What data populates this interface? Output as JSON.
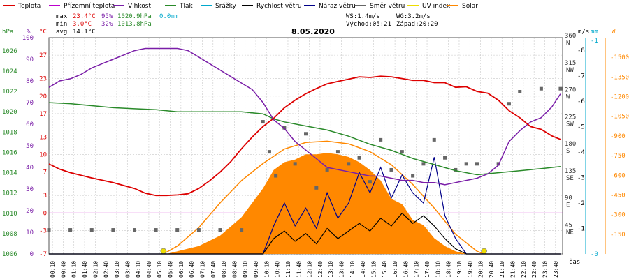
{
  "legend": [
    {
      "label": "Teplota",
      "color": "#dd0000"
    },
    {
      "label": "Přízemní teplota",
      "color": "#bb00cc"
    },
    {
      "label": "Vlhkost",
      "color": "#7a1ea8"
    },
    {
      "label": "Tlak",
      "color": "#2a8a2a"
    },
    {
      "label": "Srážky",
      "color": "#00a8cc"
    },
    {
      "label": "Rychlost větru",
      "color": "#000000"
    },
    {
      "label": "Náraz větru",
      "color": "#000088"
    },
    {
      "label": "Směr větru",
      "color": "#666666"
    },
    {
      "label": "UV index",
      "color": "#eedd00"
    },
    {
      "label": "Solar",
      "color": "#ff8800"
    }
  ],
  "stats": {
    "max_label": "max",
    "min_label": "min",
    "avg_label": "avg",
    "max_temp": "23.4°C",
    "max_hum": "95%",
    "max_press": "1020.9hPa",
    "max_rain": "0.0mm",
    "min_temp": "3.0°C",
    "min_hum": "32%",
    "min_press": "1013.8hPa",
    "avg_temp": "14.1°C",
    "ws": "WS:1.4m/s",
    "wg": "WG:3.2m/s",
    "sunrise": "Východ:05:21",
    "sunset": "Západ:20:20"
  },
  "date": "8.05.2020",
  "units": {
    "hpa": "hPa",
    "pct": "%",
    "degc": "°C",
    "ms": "m/s",
    "mm": "mm",
    "w": "W",
    "time": "čas"
  },
  "colors": {
    "temp": "#dd0000",
    "feel": "#bb00cc",
    "hum": "#7a1ea8",
    "press": "#2a8a2a",
    "rain": "#00a8cc",
    "wind": "#000000",
    "gust": "#000088",
    "dir": "#666666",
    "uv": "#eedd00",
    "solar": "#ff8800",
    "zero": "#cc00cc",
    "grid": "#c8c8c8"
  },
  "chart_data": {
    "type": "line",
    "x_unit": "hour of day",
    "x_ticks": [
      "00:10",
      "00:40",
      "01:10",
      "01:40",
      "02:10",
      "02:40",
      "03:10",
      "03:40",
      "04:10",
      "04:40",
      "05:10",
      "05:40",
      "06:10",
      "06:40",
      "07:10",
      "07:40",
      "08:10",
      "08:40",
      "09:10",
      "09:40",
      "10:10",
      "10:40",
      "11:10",
      "11:40",
      "12:10",
      "12:40",
      "13:10",
      "13:40",
      "14:10",
      "14:40",
      "15:10",
      "15:40",
      "16:10",
      "16:40",
      "17:10",
      "17:40",
      "18:10",
      "18:40",
      "19:10",
      "19:40",
      "20:10",
      "20:40",
      "21:10",
      "21:40",
      "22:10",
      "22:40",
      "23:10",
      "23:40"
    ],
    "axes": {
      "pressure_hpa": {
        "ticks": [
          1026,
          1024,
          1022,
          1020,
          1018,
          1016,
          1014,
          1012,
          1010,
          1008,
          1006
        ],
        "range": [
          1006,
          1027.3
        ]
      },
      "humidity_pct": {
        "ticks": [
          100,
          90,
          80,
          70,
          60,
          50,
          40,
          30,
          20,
          10,
          0
        ],
        "range": [
          0,
          100
        ]
      },
      "temperature_c": {
        "ticks": [
          27,
          23,
          20,
          17,
          13,
          10,
          7,
          3,
          0,
          -3,
          -7
        ],
        "range": [
          -7,
          30
        ]
      },
      "wind_dir": {
        "ticks": [
          "360 N",
          "315 NW",
          "270 W",
          "225 SW",
          "180 S",
          "135 SE",
          "90 E",
          "45 NE"
        ],
        "range": [
          0,
          360
        ]
      },
      "wind_ms": {
        "ticks": [
          8,
          7,
          6,
          5,
          4,
          3,
          2,
          1
        ],
        "range": [
          0,
          8.5
        ]
      },
      "rain_mm": {
        "ticks": [
          1,
          0
        ],
        "range": [
          0,
          1
        ]
      },
      "solar_w": {
        "ticks": [
          1500,
          1350,
          1200,
          1050,
          900,
          750,
          600,
          450,
          300,
          150
        ],
        "range": [
          0,
          1650
        ]
      }
    },
    "series": [
      {
        "name": "Teplota",
        "unit": "°C",
        "points": [
          [
            0,
            8.4
          ],
          [
            0.5,
            7.5
          ],
          [
            1,
            6.9
          ],
          [
            2,
            6.0
          ],
          [
            3,
            5.2
          ],
          [
            4,
            4.2
          ],
          [
            4.5,
            3.4
          ],
          [
            5,
            3.0
          ],
          [
            5.5,
            3.0
          ],
          [
            6,
            3.1
          ],
          [
            6.5,
            3.3
          ],
          [
            7,
            4.2
          ],
          [
            7.5,
            5.5
          ],
          [
            8,
            7.0
          ],
          [
            8.5,
            8.8
          ],
          [
            9,
            11.0
          ],
          [
            9.5,
            13.0
          ],
          [
            10,
            14.8
          ],
          [
            10.5,
            16.2
          ],
          [
            11,
            18.0
          ],
          [
            11.5,
            19.3
          ],
          [
            12,
            20.4
          ],
          [
            12.5,
            21.3
          ],
          [
            13,
            22.1
          ],
          [
            13.5,
            22.5
          ],
          [
            14,
            22.9
          ],
          [
            14.5,
            23.3
          ],
          [
            15,
            23.2
          ],
          [
            15.5,
            23.4
          ],
          [
            16,
            23.3
          ],
          [
            16.5,
            23.0
          ],
          [
            17,
            22.7
          ],
          [
            17.5,
            22.7
          ],
          [
            18,
            22.3
          ],
          [
            18.5,
            22.3
          ],
          [
            19,
            21.5
          ],
          [
            19.5,
            21.6
          ],
          [
            20,
            20.8
          ],
          [
            20.5,
            20.5
          ],
          [
            21,
            19.3
          ],
          [
            21.5,
            17.5
          ],
          [
            22,
            16.3
          ],
          [
            22.5,
            14.8
          ],
          [
            23,
            14.3
          ],
          [
            23.5,
            13.2
          ],
          [
            23.9,
            12.6
          ]
        ]
      },
      {
        "name": "Vlhkost",
        "unit": "%",
        "points": [
          [
            0,
            77
          ],
          [
            0.5,
            80
          ],
          [
            1,
            81
          ],
          [
            1.5,
            83
          ],
          [
            2,
            86
          ],
          [
            2.5,
            88
          ],
          [
            3,
            90
          ],
          [
            3.5,
            92
          ],
          [
            4,
            94
          ],
          [
            4.5,
            95
          ],
          [
            5,
            95
          ],
          [
            5.5,
            95
          ],
          [
            6,
            95
          ],
          [
            6.5,
            94
          ],
          [
            7,
            91
          ],
          [
            7.5,
            88
          ],
          [
            8,
            85
          ],
          [
            8.5,
            82
          ],
          [
            9,
            79
          ],
          [
            9.5,
            76
          ],
          [
            10,
            70
          ],
          [
            10.5,
            62
          ],
          [
            11,
            58
          ],
          [
            11.5,
            52
          ],
          [
            12,
            48
          ],
          [
            12.5,
            44
          ],
          [
            13,
            40
          ],
          [
            13.5,
            39
          ],
          [
            14,
            38
          ],
          [
            14.5,
            37
          ],
          [
            15,
            36
          ],
          [
            15.5,
            36
          ],
          [
            16,
            35
          ],
          [
            16.5,
            34
          ],
          [
            17,
            34
          ],
          [
            17.5,
            33
          ],
          [
            18,
            33
          ],
          [
            18.5,
            32
          ],
          [
            19,
            33
          ],
          [
            19.5,
            34
          ],
          [
            20,
            35
          ],
          [
            20.5,
            37
          ],
          [
            21,
            41
          ],
          [
            21.5,
            52
          ],
          [
            22,
            57
          ],
          [
            22.5,
            61
          ],
          [
            23,
            63
          ],
          [
            23.5,
            68
          ],
          [
            23.9,
            74
          ]
        ]
      },
      {
        "name": "Tlak",
        "unit": "hPa",
        "points": [
          [
            0,
            1020.9
          ],
          [
            1,
            1020.8
          ],
          [
            2,
            1020.6
          ],
          [
            3,
            1020.4
          ],
          [
            4,
            1020.3
          ],
          [
            5,
            1020.2
          ],
          [
            6,
            1020.0
          ],
          [
            7,
            1020.0
          ],
          [
            8,
            1020.0
          ],
          [
            9,
            1020.0
          ],
          [
            10,
            1019.8
          ],
          [
            10.5,
            1019.3
          ],
          [
            11,
            1019.0
          ],
          [
            12,
            1018.6
          ],
          [
            13,
            1018.2
          ],
          [
            14,
            1017.6
          ],
          [
            15,
            1016.8
          ],
          [
            16,
            1016.2
          ],
          [
            17,
            1015.4
          ],
          [
            18,
            1014.8
          ],
          [
            19,
            1014.2
          ],
          [
            20,
            1013.8
          ],
          [
            21,
            1014.0
          ],
          [
            22,
            1014.2
          ],
          [
            23,
            1014.4
          ],
          [
            23.9,
            1014.6
          ]
        ]
      },
      {
        "name": "Směr větru",
        "unit": "°",
        "points": [
          [
            0,
            40
          ],
          [
            1,
            40
          ],
          [
            2,
            40
          ],
          [
            3,
            40
          ],
          [
            4,
            40
          ],
          [
            5,
            40
          ],
          [
            6,
            40
          ],
          [
            7,
            40
          ],
          [
            8,
            40
          ],
          [
            9,
            40
          ],
          [
            10,
            220
          ],
          [
            10.3,
            170
          ],
          [
            10.6,
            130
          ],
          [
            11,
            210
          ],
          [
            11.5,
            150
          ],
          [
            12,
            200
          ],
          [
            12.5,
            110
          ],
          [
            13,
            140
          ],
          [
            13.5,
            170
          ],
          [
            14,
            150
          ],
          [
            14.5,
            160
          ],
          [
            15,
            120
          ],
          [
            15.5,
            190
          ],
          [
            16,
            140
          ],
          [
            16.5,
            170
          ],
          [
            17,
            130
          ],
          [
            17.5,
            150
          ],
          [
            18,
            190
          ],
          [
            18.5,
            160
          ],
          [
            19,
            140
          ],
          [
            19.5,
            150
          ],
          [
            20,
            150
          ],
          [
            21,
            150
          ],
          [
            21.5,
            250
          ],
          [
            22,
            270
          ],
          [
            23,
            275
          ],
          [
            23.9,
            275
          ]
        ]
      },
      {
        "name": "Rychlost větru",
        "unit": "m/s",
        "points": [
          [
            0,
            0
          ],
          [
            10,
            0
          ],
          [
            10.5,
            0.6
          ],
          [
            11,
            0.9
          ],
          [
            11.5,
            0.5
          ],
          [
            12,
            0.8
          ],
          [
            12.5,
            0.4
          ],
          [
            13,
            1.0
          ],
          [
            13.5,
            0.6
          ],
          [
            14,
            0.9
          ],
          [
            14.5,
            1.2
          ],
          [
            15,
            0.9
          ],
          [
            15.5,
            1.4
          ],
          [
            16,
            1.1
          ],
          [
            16.5,
            1.6
          ],
          [
            17,
            1.2
          ],
          [
            17.5,
            1.5
          ],
          [
            18,
            1.1
          ],
          [
            18.5,
            0.6
          ],
          [
            19,
            0.2
          ],
          [
            19.5,
            0
          ],
          [
            23.9,
            0
          ]
        ]
      },
      {
        "name": "Náraz větru",
        "unit": "m/s",
        "points": [
          [
            0,
            0
          ],
          [
            10,
            0
          ],
          [
            10.5,
            1.1
          ],
          [
            11,
            2.0
          ],
          [
            11.5,
            1.1
          ],
          [
            12,
            1.8
          ],
          [
            12.5,
            1.0
          ],
          [
            13,
            2.4
          ],
          [
            13.5,
            1.4
          ],
          [
            14,
            2.0
          ],
          [
            14.5,
            3.2
          ],
          [
            15,
            2.4
          ],
          [
            15.5,
            3.4
          ],
          [
            16,
            2.2
          ],
          [
            16.5,
            3.1
          ],
          [
            17,
            2.4
          ],
          [
            17.5,
            2.0
          ],
          [
            18,
            3.8
          ],
          [
            18.5,
            1.5
          ],
          [
            19,
            0.6
          ],
          [
            19.5,
            0
          ],
          [
            23.9,
            0
          ]
        ]
      },
      {
        "name": "Solar",
        "unit": "W",
        "points": [
          [
            5.5,
            0
          ],
          [
            6,
            20
          ],
          [
            7,
            60
          ],
          [
            8,
            140
          ],
          [
            9,
            280
          ],
          [
            10,
            500
          ],
          [
            10.5,
            640
          ],
          [
            11,
            700
          ],
          [
            11.5,
            720
          ],
          [
            12,
            760
          ],
          [
            12.5,
            760
          ],
          [
            13,
            770
          ],
          [
            13.5,
            760
          ],
          [
            14,
            740
          ],
          [
            14.5,
            700
          ],
          [
            15,
            640
          ],
          [
            15.5,
            560
          ],
          [
            16,
            420
          ],
          [
            16.5,
            380
          ],
          [
            17,
            260
          ],
          [
            17.5,
            220
          ],
          [
            18,
            120
          ],
          [
            18.5,
            60
          ],
          [
            19,
            20
          ],
          [
            19.5,
            0
          ]
        ]
      },
      {
        "name": "Solar max",
        "unit": "W",
        "points": [
          [
            5.35,
            0
          ],
          [
            6,
            60
          ],
          [
            7,
            200
          ],
          [
            8,
            390
          ],
          [
            9,
            560
          ],
          [
            10,
            690
          ],
          [
            11,
            800
          ],
          [
            12,
            850
          ],
          [
            13,
            860
          ],
          [
            14,
            840
          ],
          [
            15,
            780
          ],
          [
            16,
            680
          ],
          [
            17,
            530
          ],
          [
            18,
            350
          ],
          [
            19,
            150
          ],
          [
            20,
            20
          ],
          [
            20.33,
            0
          ]
        ]
      }
    ]
  }
}
